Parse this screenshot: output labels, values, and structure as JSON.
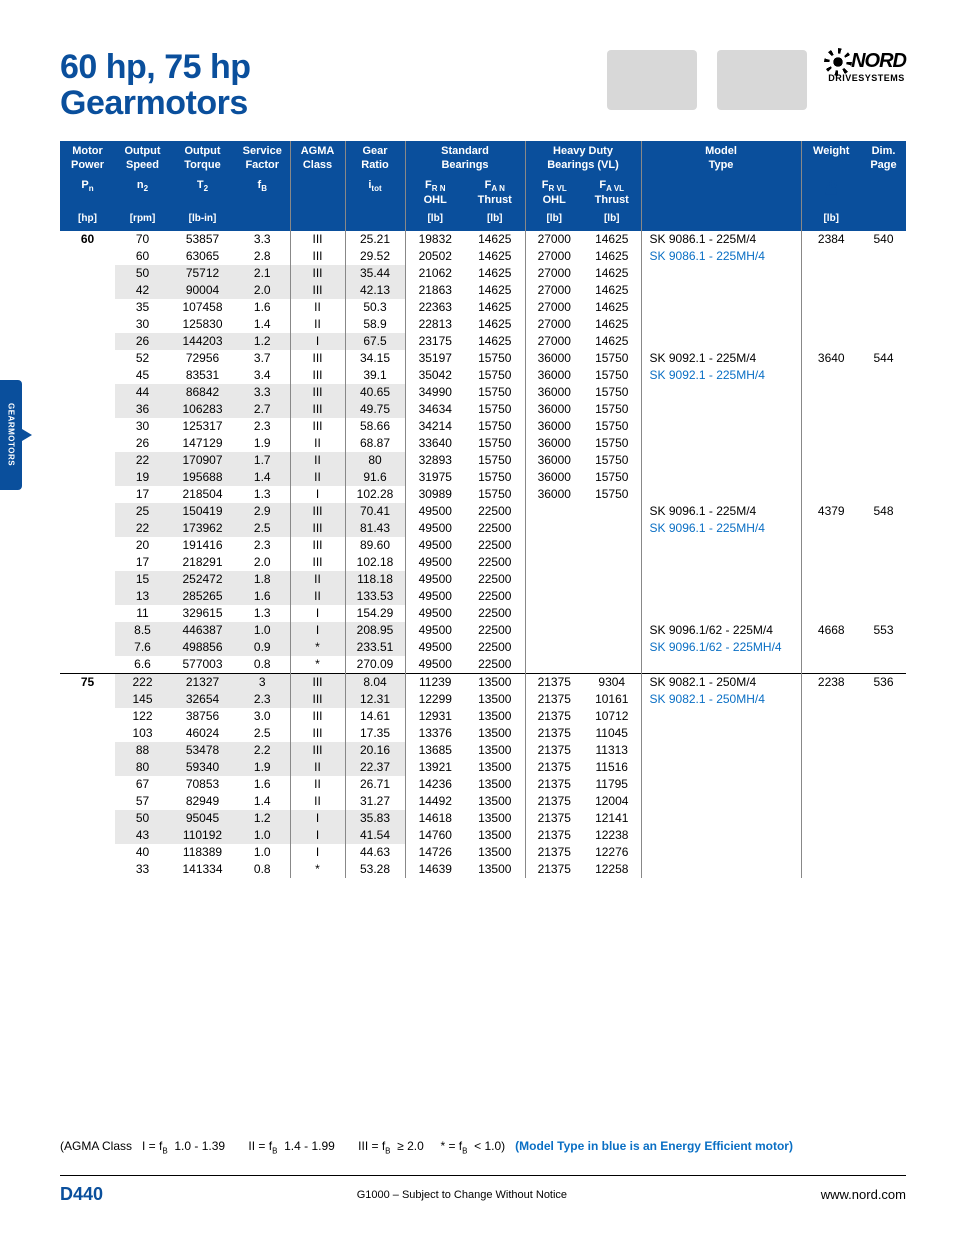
{
  "title_line1": "60 hp, 75 hp",
  "title_line2": "Gearmotors",
  "logo": {
    "brand": "NORD",
    "sub": "DRIVESYSTEMS"
  },
  "side_tab": "GEARMOTORS",
  "headers": {
    "r1": [
      "Motor Power",
      "Output Speed",
      "Output Torque",
      "Service Factor",
      "AGMA Class",
      "Gear Ratio",
      "Standard Bearings",
      "",
      "Heavy Duty Bearings (VL)",
      "",
      "Model Type",
      "Weight",
      "Dim. Page"
    ],
    "r2": [
      "Pₙ",
      "n₂",
      "T₂",
      "f_B",
      "",
      "i_tot",
      "F_R N",
      "F_A N",
      "F_R VL",
      "F_A VL",
      "",
      "",
      ""
    ],
    "r2b": [
      "",
      "",
      "",
      "",
      "",
      "",
      "OHL",
      "Thrust",
      "OHL",
      "Thrust",
      "",
      "",
      ""
    ],
    "r3": [
      "[hp]",
      "[rpm]",
      "[lb-in]",
      "",
      "",
      "",
      "[lb]",
      "[lb]",
      "[lb]",
      "[lb]",
      "",
      "[lb]",
      ""
    ]
  },
  "colors": {
    "header_bg": "#0a4f9c",
    "link": "#0a6fc4",
    "shade": "#e8e8e8"
  },
  "groups": [
    {
      "hp": "60",
      "model1": "SK 9086.1 - 225M/4",
      "model2": "SK 9086.1 - 225MH/4",
      "weight": "2384",
      "page": "540",
      "rows": [
        {
          "n2": "70",
          "t2": "53857",
          "fb": "3.3",
          "agma": "III",
          "i": "25.21",
          "frn": "19832",
          "fan": "14625",
          "frvl": "27000",
          "favl": "14625"
        },
        {
          "n2": "60",
          "t2": "63065",
          "fb": "2.8",
          "agma": "III",
          "i": "29.52",
          "frn": "20502",
          "fan": "14625",
          "frvl": "27000",
          "favl": "14625"
        },
        {
          "n2": "50",
          "t2": "75712",
          "fb": "2.1",
          "agma": "III",
          "i": "35.44",
          "frn": "21062",
          "fan": "14625",
          "frvl": "27000",
          "favl": "14625",
          "shade": true
        },
        {
          "n2": "42",
          "t2": "90004",
          "fb": "2.0",
          "agma": "III",
          "i": "42.13",
          "frn": "21863",
          "fan": "14625",
          "frvl": "27000",
          "favl": "14625",
          "shade": true
        },
        {
          "n2": "35",
          "t2": "107458",
          "fb": "1.6",
          "agma": "II",
          "i": "50.3",
          "frn": "22363",
          "fan": "14625",
          "frvl": "27000",
          "favl": "14625"
        },
        {
          "n2": "30",
          "t2": "125830",
          "fb": "1.4",
          "agma": "II",
          "i": "58.9",
          "frn": "22813",
          "fan": "14625",
          "frvl": "27000",
          "favl": "14625"
        },
        {
          "n2": "26",
          "t2": "144203",
          "fb": "1.2",
          "agma": "I",
          "i": "67.5",
          "frn": "23175",
          "fan": "14625",
          "frvl": "27000",
          "favl": "14625",
          "shade": true
        }
      ]
    },
    {
      "hp": "",
      "model1": "SK 9092.1 - 225M/4",
      "model2": "SK 9092.1 - 225MH/4",
      "weight": "3640",
      "page": "544",
      "rows": [
        {
          "n2": "52",
          "t2": "72956",
          "fb": "3.7",
          "agma": "III",
          "i": "34.15",
          "frn": "35197",
          "fan": "15750",
          "frvl": "36000",
          "favl": "15750"
        },
        {
          "n2": "45",
          "t2": "83531",
          "fb": "3.4",
          "agma": "III",
          "i": "39.1",
          "frn": "35042",
          "fan": "15750",
          "frvl": "36000",
          "favl": "15750"
        },
        {
          "n2": "44",
          "t2": "86842",
          "fb": "3.3",
          "agma": "III",
          "i": "40.65",
          "frn": "34990",
          "fan": "15750",
          "frvl": "36000",
          "favl": "15750",
          "shade": true
        },
        {
          "n2": "36",
          "t2": "106283",
          "fb": "2.7",
          "agma": "III",
          "i": "49.75",
          "frn": "34634",
          "fan": "15750",
          "frvl": "36000",
          "favl": "15750",
          "shade": true
        },
        {
          "n2": "30",
          "t2": "125317",
          "fb": "2.3",
          "agma": "III",
          "i": "58.66",
          "frn": "34214",
          "fan": "15750",
          "frvl": "36000",
          "favl": "15750"
        },
        {
          "n2": "26",
          "t2": "147129",
          "fb": "1.9",
          "agma": "II",
          "i": "68.87",
          "frn": "33640",
          "fan": "15750",
          "frvl": "36000",
          "favl": "15750"
        },
        {
          "n2": "22",
          "t2": "170907",
          "fb": "1.7",
          "agma": "II",
          "i": "80",
          "frn": "32893",
          "fan": "15750",
          "frvl": "36000",
          "favl": "15750",
          "shade": true
        },
        {
          "n2": "19",
          "t2": "195688",
          "fb": "1.4",
          "agma": "II",
          "i": "91.6",
          "frn": "31975",
          "fan": "15750",
          "frvl": "36000",
          "favl": "15750",
          "shade": true
        },
        {
          "n2": "17",
          "t2": "218504",
          "fb": "1.3",
          "agma": "I",
          "i": "102.28",
          "frn": "30989",
          "fan": "15750",
          "frvl": "36000",
          "favl": "15750"
        }
      ]
    },
    {
      "hp": "",
      "model1": "SK 9096.1 - 225M/4",
      "model2": "SK 9096.1 - 225MH/4",
      "weight": "4379",
      "page": "548",
      "rows": [
        {
          "n2": "25",
          "t2": "150419",
          "fb": "2.9",
          "agma": "III",
          "i": "70.41",
          "frn": "49500",
          "fan": "22500",
          "frvl": "",
          "favl": "",
          "shade": true
        },
        {
          "n2": "22",
          "t2": "173962",
          "fb": "2.5",
          "agma": "III",
          "i": "81.43",
          "frn": "49500",
          "fan": "22500",
          "frvl": "",
          "favl": "",
          "shade": true
        },
        {
          "n2": "20",
          "t2": "191416",
          "fb": "2.3",
          "agma": "III",
          "i": "89.60",
          "frn": "49500",
          "fan": "22500",
          "frvl": "",
          "favl": ""
        },
        {
          "n2": "17",
          "t2": "218291",
          "fb": "2.0",
          "agma": "III",
          "i": "102.18",
          "frn": "49500",
          "fan": "22500",
          "frvl": "",
          "favl": ""
        },
        {
          "n2": "15",
          "t2": "252472",
          "fb": "1.8",
          "agma": "II",
          "i": "118.18",
          "frn": "49500",
          "fan": "22500",
          "frvl": "",
          "favl": "",
          "shade": true
        },
        {
          "n2": "13",
          "t2": "285265",
          "fb": "1.6",
          "agma": "II",
          "i": "133.53",
          "frn": "49500",
          "fan": "22500",
          "frvl": "",
          "favl": "",
          "shade": true
        },
        {
          "n2": "11",
          "t2": "329615",
          "fb": "1.3",
          "agma": "I",
          "i": "154.29",
          "frn": "49500",
          "fan": "22500",
          "frvl": "",
          "favl": ""
        }
      ]
    },
    {
      "hp": "",
      "model1": "SK 9096.1/62 - 225M/4",
      "model2": "SK 9096.1/62 - 225MH/4",
      "weight": "4668",
      "page": "553",
      "rows": [
        {
          "n2": "8.5",
          "t2": "446387",
          "fb": "1.0",
          "agma": "I",
          "i": "208.95",
          "frn": "49500",
          "fan": "22500",
          "frvl": "",
          "favl": "",
          "shade": true
        },
        {
          "n2": "7.6",
          "t2": "498856",
          "fb": "0.9",
          "agma": "*",
          "i": "233.51",
          "frn": "49500",
          "fan": "22500",
          "frvl": "",
          "favl": "",
          "shade": true
        },
        {
          "n2": "6.6",
          "t2": "577003",
          "fb": "0.8",
          "agma": "*",
          "i": "270.09",
          "frn": "49500",
          "fan": "22500",
          "frvl": "",
          "favl": ""
        }
      ]
    },
    {
      "hp": "75",
      "model1": "SK 9082.1 - 250M/4",
      "model2": "SK 9082.1 - 250MH/4",
      "weight": "2238",
      "page": "536",
      "hr": true,
      "rows": [
        {
          "n2": "222",
          "t2": "21327",
          "fb": "3",
          "agma": "III",
          "i": "8.04",
          "frn": "11239",
          "fan": "13500",
          "frvl": "21375",
          "favl": "9304",
          "shade": true
        },
        {
          "n2": "145",
          "t2": "32654",
          "fb": "2.3",
          "agma": "III",
          "i": "12.31",
          "frn": "12299",
          "fan": "13500",
          "frvl": "21375",
          "favl": "10161",
          "shade": true
        },
        {
          "n2": "122",
          "t2": "38756",
          "fb": "3.0",
          "agma": "III",
          "i": "14.61",
          "frn": "12931",
          "fan": "13500",
          "frvl": "21375",
          "favl": "10712"
        },
        {
          "n2": "103",
          "t2": "46024",
          "fb": "2.5",
          "agma": "III",
          "i": "17.35",
          "frn": "13376",
          "fan": "13500",
          "frvl": "21375",
          "favl": "11045"
        },
        {
          "n2": "88",
          "t2": "53478",
          "fb": "2.2",
          "agma": "III",
          "i": "20.16",
          "frn": "13685",
          "fan": "13500",
          "frvl": "21375",
          "favl": "11313",
          "shade": true
        },
        {
          "n2": "80",
          "t2": "59340",
          "fb": "1.9",
          "agma": "II",
          "i": "22.37",
          "frn": "13921",
          "fan": "13500",
          "frvl": "21375",
          "favl": "11516",
          "shade": true
        },
        {
          "n2": "67",
          "t2": "70853",
          "fb": "1.6",
          "agma": "II",
          "i": "26.71",
          "frn": "14236",
          "fan": "13500",
          "frvl": "21375",
          "favl": "11795"
        },
        {
          "n2": "57",
          "t2": "82949",
          "fb": "1.4",
          "agma": "II",
          "i": "31.27",
          "frn": "14492",
          "fan": "13500",
          "frvl": "21375",
          "favl": "12004"
        },
        {
          "n2": "50",
          "t2": "95045",
          "fb": "1.2",
          "agma": "I",
          "i": "35.83",
          "frn": "14618",
          "fan": "13500",
          "frvl": "21375",
          "favl": "12141",
          "shade": true
        },
        {
          "n2": "43",
          "t2": "110192",
          "fb": "1.0",
          "agma": "I",
          "i": "41.54",
          "frn": "14760",
          "fan": "13500",
          "frvl": "21375",
          "favl": "12238",
          "shade": true
        },
        {
          "n2": "40",
          "t2": "118389",
          "fb": "1.0",
          "agma": "I",
          "i": "44.63",
          "frn": "14726",
          "fan": "13500",
          "frvl": "21375",
          "favl": "12276"
        },
        {
          "n2": "33",
          "t2": "141334",
          "fb": "0.8",
          "agma": "*",
          "i": "53.28",
          "frn": "14639",
          "fan": "13500",
          "frvl": "21375",
          "favl": "12258"
        }
      ]
    }
  ],
  "footer_note_left": "(AGMA Class   I = f_B  1.0 - 1.39       II = f_B  1.4 - 1.99       III = f_B  ≥ 2.0     * = f_B  < 1.0)",
  "footer_note_right": "(Model Type in blue is an Energy Efficient motor)",
  "footer": {
    "page_num": "D440",
    "mid": "G1000 – Subject to Change Without Notice",
    "url": "www.nord.com"
  }
}
